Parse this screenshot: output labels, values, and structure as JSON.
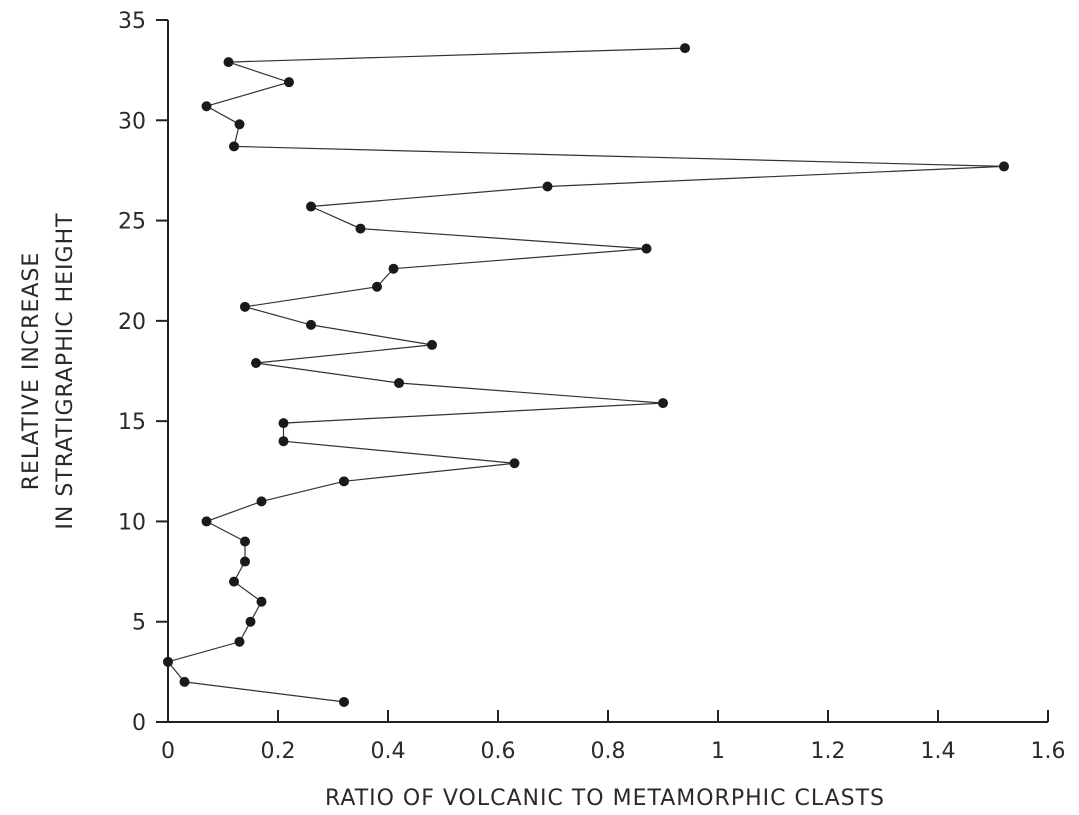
{
  "chart_data": {
    "type": "line",
    "xlabel": "RATIO OF VOLCANIC TO METAMORPHIC CLASTS",
    "ylabel_lines": [
      "RELATIVE INCREASE",
      "IN STRATIGRAPHIC HEIGHT"
    ],
    "xlim": [
      0,
      1.6
    ],
    "ylim": [
      0,
      35
    ],
    "x_ticks": [
      0,
      0.2,
      0.4,
      0.6,
      0.8,
      1.0,
      1.2,
      1.4,
      1.6
    ],
    "x_tick_labels": [
      "0",
      "0.2",
      "0.4",
      "0.6",
      "0.8",
      "1",
      "1.2",
      "1.4",
      "1.6"
    ],
    "y_ticks": [
      0,
      5,
      10,
      15,
      20,
      25,
      30,
      35
    ],
    "y_tick_labels": [
      "0",
      "5",
      "10",
      "15",
      "20",
      "25",
      "30",
      "35"
    ],
    "grid": false,
    "marker": "filled-circle",
    "series": [
      {
        "x": [
          0.32,
          0.03,
          0.0,
          0.13,
          0.15,
          0.17,
          0.12,
          0.14,
          0.14,
          0.07,
          0.17,
          0.32,
          0.63,
          0.21,
          0.21,
          0.9,
          0.42,
          0.16,
          0.48,
          0.26,
          0.14,
          0.38,
          0.41,
          0.87,
          0.35,
          0.26,
          0.69,
          1.52,
          0.12,
          0.13,
          0.07,
          0.22,
          0.11,
          0.94
        ],
        "y": [
          1.0,
          2.0,
          3.0,
          4.0,
          5.0,
          6.0,
          7.0,
          8.0,
          9.0,
          10.0,
          11.0,
          12.0,
          12.9,
          14.0,
          14.9,
          15.9,
          16.9,
          17.9,
          18.8,
          19.8,
          20.7,
          21.7,
          22.6,
          23.6,
          24.6,
          25.7,
          26.7,
          27.7,
          28.7,
          29.8,
          30.7,
          31.9,
          32.9,
          33.6
        ]
      }
    ]
  }
}
